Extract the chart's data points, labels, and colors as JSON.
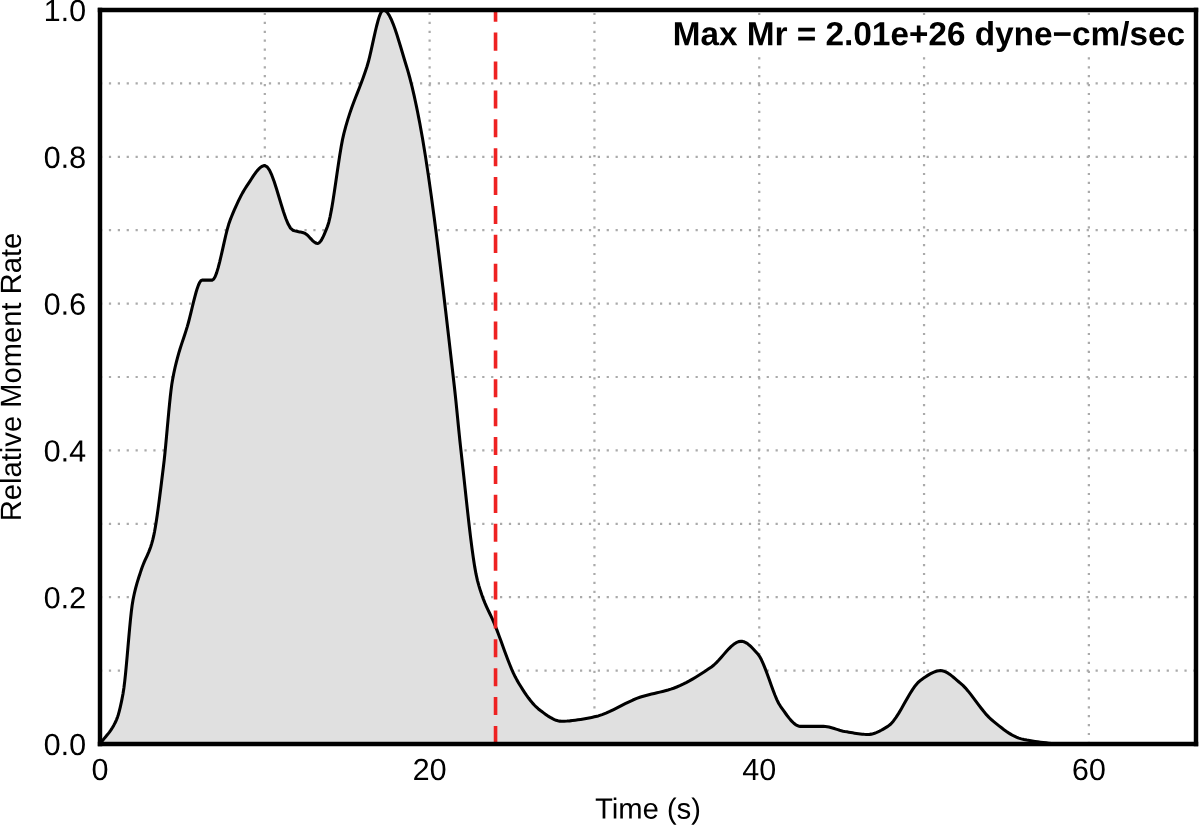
{
  "chart_data": {
    "type": "area",
    "xlabel": "Time (s)",
    "ylabel": "Relative Moment Rate",
    "annotations": [
      "Max Mr = 2.01e+26 dyne−cm/sec"
    ],
    "x": [
      0,
      1.0,
      1.4,
      2.0,
      2.5,
      3.2,
      3.85,
      4.4,
      5.3,
      6.2,
      6.8,
      7.9,
      8.9,
      10.0,
      11.7,
      12.4,
      13.2,
      13.8,
      14.8,
      16.2,
      17.2,
      18.6,
      19.4,
      21.5,
      21.9,
      22.9,
      24.0,
      25.3,
      26.7,
      28.0,
      30.0,
      32.8,
      34.8,
      37.1,
      38.9,
      39.9,
      41.3,
      42.5,
      43.9,
      45.2,
      46.6,
      47.8,
      49.8,
      51.0,
      52.2,
      54.1,
      55.9,
      57.9
    ],
    "values": [
      0,
      0.033,
      0.069,
      0.196,
      0.237,
      0.278,
      0.378,
      0.496,
      0.569,
      0.632,
      0.632,
      0.714,
      0.76,
      0.788,
      0.7,
      0.696,
      0.682,
      0.705,
      0.832,
      0.923,
      1.0,
      0.923,
      0.846,
      0.487,
      0.4,
      0.223,
      0.16,
      0.087,
      0.046,
      0.031,
      0.037,
      0.064,
      0.076,
      0.105,
      0.14,
      0.123,
      0.051,
      0.024,
      0.024,
      0.017,
      0.013,
      0.024,
      0.087,
      0.1,
      0.083,
      0.033,
      0.007,
      0
    ],
    "color": "#e0e0e0",
    "xlim": [
      0,
      66.5
    ],
    "xticks": [
      0,
      {
        "value": 10,
        "label": null
      },
      20,
      {
        "value": 30,
        "label": null
      },
      40,
      {
        "value": 50,
        "label": null
      },
      60
    ],
    "ylim": [
      0,
      1
    ],
    "yticks": [
      {
        "value": 0,
        "label": "0.0"
      },
      {
        "value": 0.1,
        "label": null
      },
      0.2,
      {
        "value": 0.3,
        "label": null
      },
      0.4,
      {
        "value": 0.5,
        "label": null
      },
      0.6,
      {
        "value": 0.7,
        "label": null
      },
      0.8,
      {
        "value": 0.9,
        "label": null
      },
      {
        "value": 1,
        "label": "1.0"
      }
    ],
    "ref_lines": [
      {
        "axis": "x",
        "value": 24,
        "color": "#ee2222",
        "line_style": "dashed"
      }
    ],
    "grid": true
  }
}
